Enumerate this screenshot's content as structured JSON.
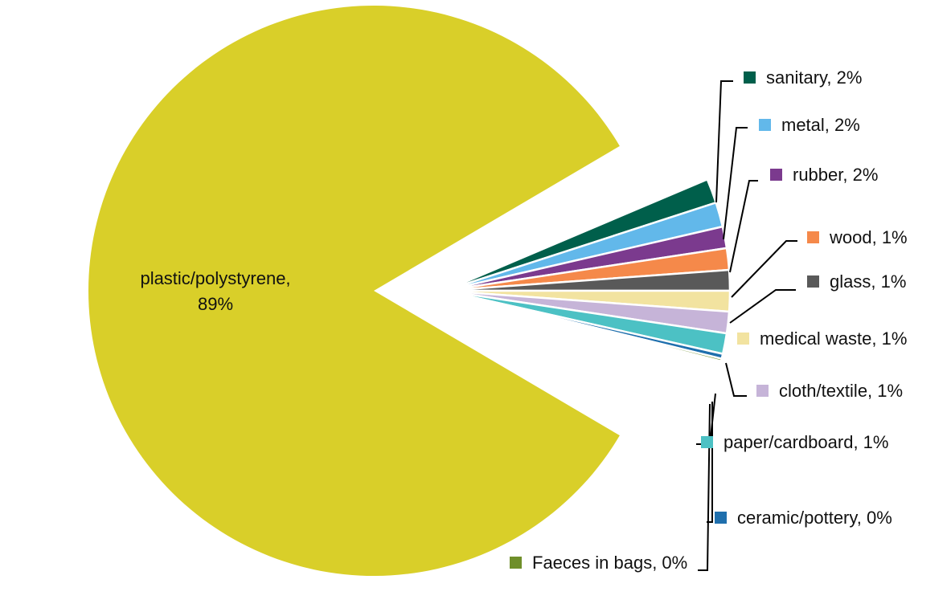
{
  "chart_data": {
    "type": "pie",
    "exploded": [
      "sanitary",
      "metal",
      "rubber",
      "wood",
      "glass",
      "medical waste",
      "cloth/textile",
      "paper/cardboard",
      "ceramic/pottery",
      "Faeces in bags"
    ],
    "slices": [
      {
        "name": "sanitary",
        "percent": 2,
        "label": "sanitary, 2%",
        "color": "#005f4b"
      },
      {
        "name": "metal",
        "percent": 2,
        "label": "metal, 2%",
        "color": "#62b8ea"
      },
      {
        "name": "rubber",
        "percent": 2,
        "label": "rubber, 2%",
        "color": "#7b3a8e"
      },
      {
        "name": "wood",
        "percent": 1,
        "label": "wood, 1%",
        "color": "#f5894a"
      },
      {
        "name": "glass",
        "percent": 1,
        "label": "glass, 1%",
        "color": "#595959"
      },
      {
        "name": "medical waste",
        "percent": 1,
        "label": "medical waste, 1%",
        "color": "#f2e3a0"
      },
      {
        "name": "cloth/textile",
        "percent": 1,
        "label": "cloth/textile, 1%",
        "color": "#c6b4d8"
      },
      {
        "name": "paper/cardboard",
        "percent": 1,
        "label": "paper/cardboard, 1%",
        "color": "#4cc1c4"
      },
      {
        "name": "ceramic/pottery",
        "percent": 0,
        "label": "ceramic/pottery, 0%",
        "color": "#1f6fad"
      },
      {
        "name": "Faeces in bags",
        "percent": 0,
        "label": "Faeces in bags, 0%",
        "color": "#6f8f2a"
      },
      {
        "name": "plastic/polystyrene",
        "percent": 89,
        "label_line1": "plastic/polystyrene,",
        "label_line2": "89%",
        "color": "#d9cf29"
      }
    ]
  }
}
